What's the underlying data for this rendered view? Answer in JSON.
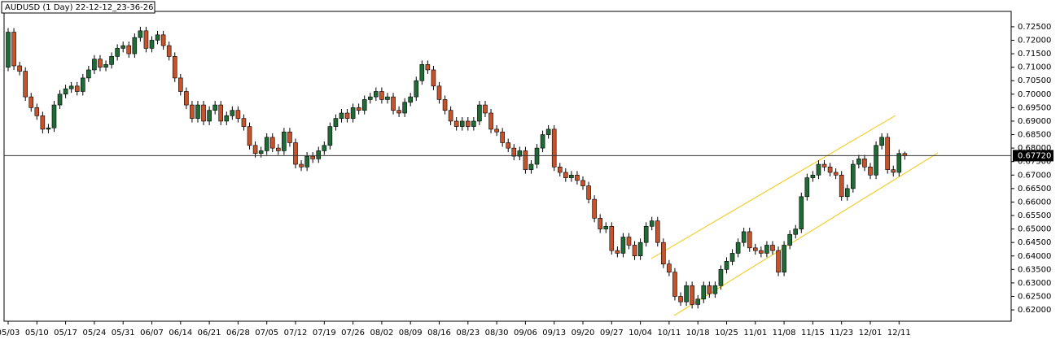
{
  "chart_data": {
    "type": "candlestick",
    "title": "AUDUSD (1 Day) 22-12-12_23-36-26",
    "categories": [
      "05/03",
      null,
      null,
      null,
      null,
      "05/10",
      null,
      null,
      null,
      null,
      "05/17",
      null,
      null,
      null,
      null,
      "05/24",
      null,
      null,
      null,
      null,
      "05/31",
      null,
      null,
      null,
      null,
      "06/07",
      null,
      null,
      null,
      null,
      "06/14",
      null,
      null,
      null,
      null,
      "06/21",
      null,
      null,
      null,
      null,
      "06/28",
      null,
      null,
      null,
      null,
      "07/05",
      null,
      null,
      null,
      null,
      "07/12",
      null,
      null,
      null,
      null,
      "07/19",
      null,
      null,
      null,
      null,
      "07/26",
      null,
      null,
      null,
      null,
      "08/02",
      null,
      null,
      null,
      null,
      "08/09",
      null,
      null,
      null,
      null,
      "08/16",
      null,
      null,
      null,
      null,
      "08/23",
      null,
      null,
      null,
      null,
      "08/30",
      null,
      null,
      null,
      null,
      "09/06",
      null,
      null,
      null,
      null,
      "09/13",
      null,
      null,
      null,
      null,
      "09/20",
      null,
      null,
      null,
      null,
      "09/27",
      null,
      null,
      null,
      null,
      "10/04",
      null,
      null,
      null,
      null,
      "10/11",
      null,
      null,
      null,
      null,
      "10/18",
      null,
      null,
      null,
      null,
      "10/25",
      null,
      null,
      null,
      null,
      "11/01",
      null,
      null,
      null,
      null,
      "11/08",
      null,
      null,
      null,
      null,
      "11/15",
      null,
      null,
      null,
      null,
      "11/23",
      null,
      null,
      null,
      null,
      "12/01",
      null,
      null,
      null,
      null,
      "12/11",
      null
    ],
    "open": [
      0.71,
      0.723,
      0.7105,
      0.7085,
      0.699,
      0.695,
      0.692,
      0.687,
      0.6875,
      0.696,
      0.7,
      0.702,
      0.703,
      0.701,
      0.706,
      0.709,
      0.713,
      0.71,
      0.711,
      0.714,
      0.717,
      0.718,
      0.715,
      0.721,
      0.7235,
      0.717,
      0.72,
      0.722,
      0.718,
      0.714,
      0.706,
      0.701,
      0.696,
      0.691,
      0.696,
      0.69,
      0.694,
      0.696,
      0.69,
      0.692,
      0.694,
      0.691,
      0.688,
      0.681,
      0.678,
      0.679,
      0.684,
      0.68,
      0.679,
      0.686,
      0.682,
      0.674,
      0.673,
      0.677,
      0.676,
      0.679,
      0.681,
      0.688,
      0.691,
      0.693,
      0.691,
      0.695,
      0.694,
      0.698,
      0.699,
      0.701,
      0.698,
      0.699,
      0.694,
      0.693,
      0.697,
      0.699,
      0.705,
      0.711,
      0.709,
      0.703,
      0.698,
      0.694,
      0.69,
      0.688,
      0.69,
      0.688,
      0.69,
      0.696,
      0.693,
      0.687,
      0.686,
      0.682,
      0.68,
      0.677,
      0.679,
      0.672,
      0.674,
      0.68,
      0.685,
      0.687,
      0.673,
      0.671,
      0.669,
      0.67,
      0.668,
      0.666,
      0.661,
      0.654,
      0.65,
      0.651,
      0.642,
      0.641,
      0.647,
      0.644,
      0.64,
      0.645,
      0.651,
      0.653,
      0.645,
      0.637,
      0.634,
      0.625,
      0.623,
      0.629,
      0.622,
      0.624,
      0.629,
      0.626,
      0.629,
      0.635,
      0.638,
      0.641,
      0.645,
      0.649,
      0.643,
      0.642,
      0.641,
      0.644,
      0.642,
      0.634,
      0.644,
      0.648,
      0.65,
      0.662,
      0.669,
      0.67,
      0.674,
      0.673,
      0.671,
      0.67,
      0.662,
      0.665,
      0.674,
      0.676,
      0.673,
      0.67,
      0.681,
      0.684,
      0.672,
      0.671,
      0.678
    ],
    "high": [
      0.7245,
      0.7245,
      0.712,
      0.71,
      0.7005,
      0.6965,
      0.6935,
      0.689,
      0.6975,
      0.7015,
      0.7035,
      0.7045,
      0.7045,
      0.7075,
      0.7105,
      0.7145,
      0.7145,
      0.7125,
      0.7155,
      0.7185,
      0.7195,
      0.7195,
      0.7225,
      0.725,
      0.725,
      0.7215,
      0.7235,
      0.7235,
      0.7195,
      0.7155,
      0.7075,
      0.7025,
      0.6975,
      0.6975,
      0.6975,
      0.6955,
      0.6975,
      0.6975,
      0.6935,
      0.6955,
      0.6955,
      0.6925,
      0.6895,
      0.6825,
      0.6805,
      0.6855,
      0.6855,
      0.6815,
      0.6875,
      0.6875,
      0.6835,
      0.6755,
      0.6785,
      0.6785,
      0.6805,
      0.6825,
      0.6895,
      0.6925,
      0.6945,
      0.6945,
      0.6965,
      0.6965,
      0.6995,
      0.7005,
      0.7025,
      0.7025,
      0.7005,
      0.7005,
      0.6955,
      0.6985,
      0.7005,
      0.7065,
      0.7125,
      0.7125,
      0.7105,
      0.7045,
      0.6995,
      0.6955,
      0.6915,
      0.6915,
      0.6915,
      0.6915,
      0.6975,
      0.6975,
      0.6945,
      0.6885,
      0.6875,
      0.6835,
      0.6815,
      0.6805,
      0.6805,
      0.6755,
      0.6815,
      0.6865,
      0.6885,
      0.6885,
      0.6745,
      0.6725,
      0.6715,
      0.6715,
      0.6695,
      0.6675,
      0.6625,
      0.6555,
      0.6525,
      0.6525,
      0.6435,
      0.6485,
      0.6485,
      0.6455,
      0.6465,
      0.6525,
      0.6545,
      0.6545,
      0.6465,
      0.6385,
      0.6355,
      0.6265,
      0.6305,
      0.6305,
      0.6255,
      0.6305,
      0.6305,
      0.6305,
      0.6365,
      0.6395,
      0.6425,
      0.6465,
      0.6505,
      0.6505,
      0.6445,
      0.6435,
      0.6455,
      0.6455,
      0.6435,
      0.6455,
      0.6495,
      0.6515,
      0.6635,
      0.6705,
      0.6715,
      0.6755,
      0.6755,
      0.6745,
      0.6725,
      0.6715,
      0.6665,
      0.6755,
      0.6775,
      0.6775,
      0.6745,
      0.6825,
      0.6855,
      0.6855,
      0.6735,
      0.6795,
      0.6787
    ],
    "low": [
      0.7085,
      0.709,
      0.707,
      0.6975,
      0.6935,
      0.6905,
      0.6855,
      0.6855,
      0.686,
      0.6945,
      0.6985,
      0.7005,
      0.6995,
      0.6995,
      0.7045,
      0.7075,
      0.7085,
      0.7085,
      0.7095,
      0.7125,
      0.7155,
      0.7135,
      0.7135,
      0.7195,
      0.7155,
      0.7155,
      0.7185,
      0.7165,
      0.7125,
      0.7045,
      0.6995,
      0.6945,
      0.6895,
      0.6895,
      0.6885,
      0.6885,
      0.6925,
      0.6885,
      0.6885,
      0.6905,
      0.6895,
      0.6865,
      0.6795,
      0.6765,
      0.6765,
      0.6775,
      0.6785,
      0.6775,
      0.6775,
      0.6805,
      0.6725,
      0.6715,
      0.6715,
      0.6745,
      0.6745,
      0.6775,
      0.6795,
      0.6865,
      0.6895,
      0.6895,
      0.6895,
      0.6925,
      0.6925,
      0.6965,
      0.6975,
      0.6965,
      0.6965,
      0.6925,
      0.6915,
      0.6915,
      0.6955,
      0.6975,
      0.7035,
      0.7075,
      0.7015,
      0.6965,
      0.6925,
      0.6885,
      0.6865,
      0.6865,
      0.6865,
      0.6865,
      0.6885,
      0.6915,
      0.6855,
      0.6845,
      0.6805,
      0.6785,
      0.6755,
      0.6755,
      0.6705,
      0.6705,
      0.6725,
      0.6785,
      0.6835,
      0.6715,
      0.6695,
      0.6675,
      0.6675,
      0.6665,
      0.6645,
      0.6595,
      0.6525,
      0.6485,
      0.6485,
      0.6405,
      0.6395,
      0.6395,
      0.6425,
      0.6385,
      0.6385,
      0.6435,
      0.6495,
      0.6435,
      0.6355,
      0.6325,
      0.6235,
      0.6215,
      0.6215,
      0.6205,
      0.6205,
      0.6225,
      0.6245,
      0.6245,
      0.6275,
      0.6335,
      0.6365,
      0.6395,
      0.6435,
      0.6415,
      0.6405,
      0.6395,
      0.6395,
      0.6405,
      0.6325,
      0.6325,
      0.6425,
      0.6465,
      0.6485,
      0.6605,
      0.6675,
      0.6685,
      0.6715,
      0.6695,
      0.6685,
      0.6605,
      0.6605,
      0.6635,
      0.6725,
      0.6715,
      0.6685,
      0.6685,
      0.6795,
      0.6705,
      0.6695,
      0.6695,
      0.6757
    ],
    "close": [
      0.723,
      0.7105,
      0.7085,
      0.699,
      0.695,
      0.692,
      0.687,
      0.6875,
      0.696,
      0.7,
      0.702,
      0.703,
      0.701,
      0.706,
      0.709,
      0.713,
      0.71,
      0.711,
      0.714,
      0.717,
      0.718,
      0.715,
      0.721,
      0.7235,
      0.717,
      0.72,
      0.722,
      0.718,
      0.714,
      0.706,
      0.701,
      0.696,
      0.691,
      0.696,
      0.69,
      0.694,
      0.696,
      0.69,
      0.692,
      0.694,
      0.691,
      0.688,
      0.681,
      0.678,
      0.679,
      0.684,
      0.68,
      0.679,
      0.686,
      0.682,
      0.674,
      0.673,
      0.677,
      0.676,
      0.679,
      0.681,
      0.688,
      0.691,
      0.693,
      0.691,
      0.695,
      0.694,
      0.698,
      0.699,
      0.701,
      0.698,
      0.699,
      0.694,
      0.693,
      0.697,
      0.699,
      0.705,
      0.711,
      0.709,
      0.703,
      0.698,
      0.694,
      0.69,
      0.688,
      0.69,
      0.688,
      0.69,
      0.696,
      0.693,
      0.687,
      0.686,
      0.682,
      0.68,
      0.677,
      0.679,
      0.672,
      0.674,
      0.68,
      0.685,
      0.687,
      0.673,
      0.671,
      0.669,
      0.67,
      0.668,
      0.666,
      0.661,
      0.654,
      0.65,
      0.651,
      0.642,
      0.641,
      0.647,
      0.644,
      0.64,
      0.645,
      0.651,
      0.653,
      0.645,
      0.637,
      0.634,
      0.625,
      0.623,
      0.629,
      0.622,
      0.624,
      0.629,
      0.626,
      0.629,
      0.635,
      0.638,
      0.641,
      0.645,
      0.649,
      0.643,
      0.642,
      0.641,
      0.644,
      0.642,
      0.634,
      0.644,
      0.648,
      0.65,
      0.662,
      0.669,
      0.67,
      0.674,
      0.673,
      0.671,
      0.67,
      0.662,
      0.665,
      0.674,
      0.676,
      0.673,
      0.67,
      0.681,
      0.684,
      0.672,
      0.671,
      0.678,
      0.6772
    ],
    "up_color": "#1f6b35",
    "down_color": "#c8532b",
    "current_price": 0.6772,
    "current_price_label": "0.67720",
    "ylim": [
      0.6158,
      0.7307
    ],
    "yticks": [
      {
        "value": 0.62,
        "label": "0.62000"
      },
      {
        "value": 0.625,
        "label": "0.62500"
      },
      {
        "value": 0.63,
        "label": "0.63000"
      },
      {
        "value": 0.635,
        "label": "0.63500"
      },
      {
        "value": 0.64,
        "label": "0.64000"
      },
      {
        "value": 0.645,
        "label": "0.64500"
      },
      {
        "value": 0.65,
        "label": "0.65000"
      },
      {
        "value": 0.655,
        "label": "0.65500"
      },
      {
        "value": 0.66,
        "label": "0.66000"
      },
      {
        "value": 0.665,
        "label": "0.66500"
      },
      {
        "value": 0.67,
        "label": "0.67000"
      },
      {
        "value": 0.675,
        "label": "0.67500"
      },
      {
        "value": 0.68,
        "label": "0.68000"
      },
      {
        "value": 0.685,
        "label": "0.68500"
      },
      {
        "value": 0.69,
        "label": "0.69000"
      },
      {
        "value": 0.695,
        "label": "0.69500"
      },
      {
        "value": 0.7,
        "label": "0.70000"
      },
      {
        "value": 0.705,
        "label": "0.70500"
      },
      {
        "value": 0.71,
        "label": "0.71000"
      },
      {
        "value": 0.715,
        "label": "0.71500"
      },
      {
        "value": 0.72,
        "label": "0.72000"
      },
      {
        "value": 0.725,
        "label": "0.72500"
      }
    ],
    "grid": false
  }
}
